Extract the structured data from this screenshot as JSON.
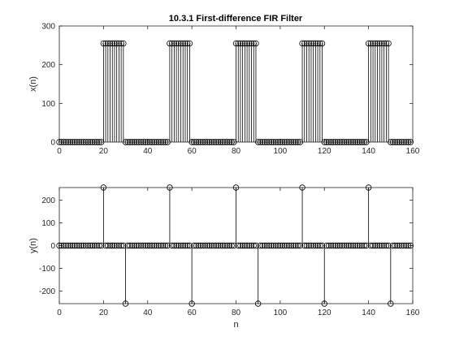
{
  "figure": {
    "title": "10.3.1 First-difference FIR Filter"
  },
  "chart_data": [
    {
      "type": "stem",
      "title": "10.3.1 First-difference FIR Filter",
      "xlabel": "",
      "ylabel": "x(n)",
      "xlim": [
        0,
        160
      ],
      "ylim": [
        0,
        300
      ],
      "xticks": [
        0,
        20,
        40,
        60,
        80,
        100,
        120,
        140,
        160
      ],
      "yticks": [
        0,
        100,
        200,
        300
      ],
      "marker": "circle-open",
      "color": "#000000",
      "n_start": 0,
      "n_end": 159,
      "values": [
        0,
        0,
        0,
        0,
        0,
        0,
        0,
        0,
        0,
        0,
        0,
        0,
        0,
        0,
        0,
        0,
        0,
        0,
        0,
        0,
        255,
        255,
        255,
        255,
        255,
        255,
        255,
        255,
        255,
        255,
        0,
        0,
        0,
        0,
        0,
        0,
        0,
        0,
        0,
        0,
        0,
        0,
        0,
        0,
        0,
        0,
        0,
        0,
        0,
        0,
        255,
        255,
        255,
        255,
        255,
        255,
        255,
        255,
        255,
        255,
        0,
        0,
        0,
        0,
        0,
        0,
        0,
        0,
        0,
        0,
        0,
        0,
        0,
        0,
        0,
        0,
        0,
        0,
        0,
        0,
        255,
        255,
        255,
        255,
        255,
        255,
        255,
        255,
        255,
        255,
        0,
        0,
        0,
        0,
        0,
        0,
        0,
        0,
        0,
        0,
        0,
        0,
        0,
        0,
        0,
        0,
        0,
        0,
        0,
        0,
        255,
        255,
        255,
        255,
        255,
        255,
        255,
        255,
        255,
        255,
        0,
        0,
        0,
        0,
        0,
        0,
        0,
        0,
        0,
        0,
        0,
        0,
        0,
        0,
        0,
        0,
        0,
        0,
        0,
        0,
        255,
        255,
        255,
        255,
        255,
        255,
        255,
        255,
        255,
        255,
        0,
        0,
        0,
        0,
        0,
        0,
        0,
        0,
        0,
        0
      ]
    },
    {
      "type": "stem",
      "title": "",
      "xlabel": "n",
      "ylabel": "y(n)",
      "xlim": [
        0,
        160
      ],
      "ylim": [
        -255,
        255
      ],
      "xticks": [
        0,
        20,
        40,
        60,
        80,
        100,
        120,
        140,
        160
      ],
      "yticks": [
        -200,
        -100,
        0,
        100,
        200
      ],
      "marker": "circle-open",
      "color": "#000000",
      "n_start": 0,
      "n_end": 159,
      "values": [
        0,
        0,
        0,
        0,
        0,
        0,
        0,
        0,
        0,
        0,
        0,
        0,
        0,
        0,
        0,
        0,
        0,
        0,
        0,
        0,
        255,
        0,
        0,
        0,
        0,
        0,
        0,
        0,
        0,
        0,
        -255,
        0,
        0,
        0,
        0,
        0,
        0,
        0,
        0,
        0,
        0,
        0,
        0,
        0,
        0,
        0,
        0,
        0,
        0,
        0,
        255,
        0,
        0,
        0,
        0,
        0,
        0,
        0,
        0,
        0,
        -255,
        0,
        0,
        0,
        0,
        0,
        0,
        0,
        0,
        0,
        0,
        0,
        0,
        0,
        0,
        0,
        0,
        0,
        0,
        0,
        255,
        0,
        0,
        0,
        0,
        0,
        0,
        0,
        0,
        0,
        -255,
        0,
        0,
        0,
        0,
        0,
        0,
        0,
        0,
        0,
        0,
        0,
        0,
        0,
        0,
        0,
        0,
        0,
        0,
        0,
        255,
        0,
        0,
        0,
        0,
        0,
        0,
        0,
        0,
        0,
        -255,
        0,
        0,
        0,
        0,
        0,
        0,
        0,
        0,
        0,
        0,
        0,
        0,
        0,
        0,
        0,
        0,
        0,
        0,
        0,
        255,
        0,
        0,
        0,
        0,
        0,
        0,
        0,
        0,
        0,
        -255,
        0,
        0,
        0,
        0,
        0,
        0,
        0,
        0,
        0
      ]
    }
  ]
}
